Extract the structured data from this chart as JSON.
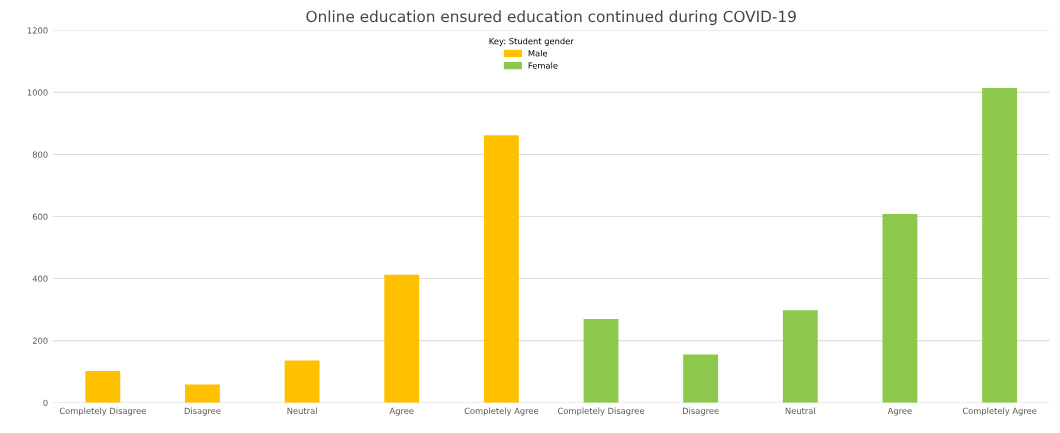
{
  "chart_data": {
    "type": "bar",
    "title": "Online education ensured education continued during COVID-19",
    "categories": [
      "Completely Disagree",
      "Disagree",
      "Neutral",
      "Agree",
      "Completely Agree",
      "Completely Disagree",
      "Disagree",
      "Neutral",
      "Agree",
      "Completely Agree"
    ],
    "series": [
      {
        "name": "Male",
        "color": "#ffc000",
        "values": [
          102,
          59,
          136,
          412,
          862,
          null,
          null,
          null,
          null,
          null
        ]
      },
      {
        "name": "Female",
        "color": "#8cc84b",
        "values": [
          null,
          null,
          null,
          null,
          null,
          270,
          155,
          298,
          608,
          1014
        ]
      }
    ],
    "legend_title": "Key: Student gender",
    "legend": "top",
    "ylim": [
      0,
      1200
    ],
    "yticks": [
      0,
      200,
      400,
      600,
      800,
      1000,
      1200
    ],
    "grid": "y"
  }
}
